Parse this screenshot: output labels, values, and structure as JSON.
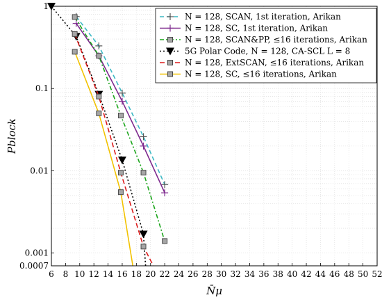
{
  "chart_data": {
    "type": "line",
    "xlabel": "N̄μ",
    "ylabel": "Pblock",
    "xlim": [
      6,
      52
    ],
    "ylim": [
      0.0007,
      1
    ],
    "yscale": "log",
    "grid": true,
    "legend_position": "top-right",
    "x_ticks": [
      6,
      8,
      10,
      12,
      14,
      16,
      18,
      20,
      22,
      24,
      26,
      28,
      30,
      32,
      34,
      36,
      38,
      40,
      42,
      44,
      46,
      48,
      50,
      52
    ],
    "y_ticks": [
      {
        "value": 1,
        "label": "1"
      },
      {
        "value": 0.1,
        "label": "0.1"
      },
      {
        "value": 0.01,
        "label": "0.01"
      },
      {
        "value": 0.001,
        "label": "0.001"
      },
      {
        "value": 0.0007,
        "label": "0.0007"
      }
    ],
    "series": [
      {
        "name": "N = 128, SCAN, 1st iteration, Arikan",
        "color": "#3cb8c4",
        "dash": "6,4",
        "marker": "plus",
        "x": [
          9.5,
          12.7,
          16.0,
          19.0,
          22.0
        ],
        "y": [
          0.75,
          0.33,
          0.088,
          0.026,
          0.0068
        ]
      },
      {
        "name": "N = 128, SC, 1st iteration, Arikan",
        "color": "#7e2a8e",
        "dash": "",
        "marker": "plus",
        "x": [
          9.5,
          12.7,
          16.0,
          19.0,
          22.0
        ],
        "y": [
          0.62,
          0.25,
          0.07,
          0.02,
          0.0054
        ]
      },
      {
        "name": "N = 128, SCAN&PP, ≤16 iterations, Arikan",
        "color": "#1aa51a",
        "dash": "6,3,2,3",
        "marker": "square",
        "x": [
          9.3,
          12.7,
          15.8,
          19.0,
          22.0
        ],
        "y": [
          0.74,
          0.25,
          0.047,
          0.0095,
          0.0014
        ]
      },
      {
        "name": "5G Polar Code, N = 128, CA-SCL L = 8",
        "color": "#000000",
        "dash": "2,3",
        "marker": "triangle",
        "x": [
          6.0,
          9.5,
          12.7,
          16.0,
          19.0,
          19.3
        ],
        "y": [
          1.0,
          0.43,
          0.085,
          0.0135,
          0.0017,
          0.0007
        ]
      },
      {
        "name": "N = 128, ExtSCAN, ≤16 iterations, Arikan",
        "color": "#dd1c1c",
        "dash": "7,4",
        "marker": "square",
        "x": [
          9.3,
          12.7,
          15.8,
          19.0,
          20.4
        ],
        "y": [
          0.46,
          0.08,
          0.0095,
          0.0012,
          0.0007
        ]
      },
      {
        "name": "N = 128, SC, ≤16 iterations, Arikan",
        "color": "#f2c200",
        "dash": "",
        "marker": "square",
        "x": [
          9.3,
          12.7,
          15.8,
          17.5
        ],
        "y": [
          0.28,
          0.05,
          0.0055,
          0.0007
        ]
      }
    ]
  }
}
